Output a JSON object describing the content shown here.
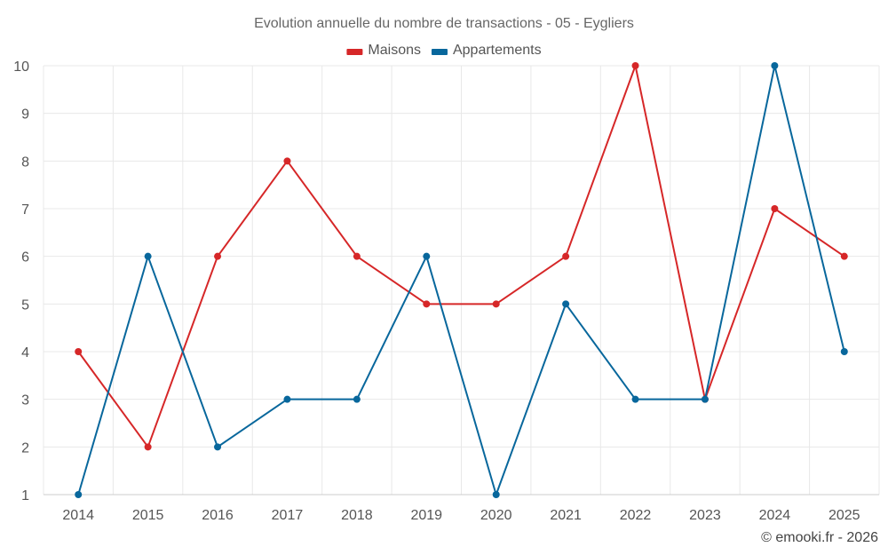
{
  "chart_data": {
    "type": "line",
    "title": "Evolution annuelle du nombre de transactions - 05 - Eygliers",
    "xlabel": "",
    "ylabel": "",
    "categories": [
      "2014",
      "2015",
      "2016",
      "2017",
      "2018",
      "2019",
      "2020",
      "2021",
      "2022",
      "2023",
      "2024",
      "2025"
    ],
    "ylim": [
      1,
      10
    ],
    "yticks": [
      1,
      2,
      3,
      4,
      5,
      6,
      7,
      8,
      9,
      10
    ],
    "grid": true,
    "legend_position": "top-center",
    "series": [
      {
        "name": "Maisons",
        "color": "#d62728",
        "values": [
          4,
          2,
          6,
          8,
          6,
          5,
          5,
          6,
          10,
          3,
          7,
          6
        ]
      },
      {
        "name": "Appartements",
        "color": "#08679c",
        "values": [
          1,
          6,
          2,
          3,
          3,
          6,
          1,
          5,
          3,
          3,
          10,
          4
        ]
      }
    ]
  },
  "credit": "© emooki.fr - 2026"
}
